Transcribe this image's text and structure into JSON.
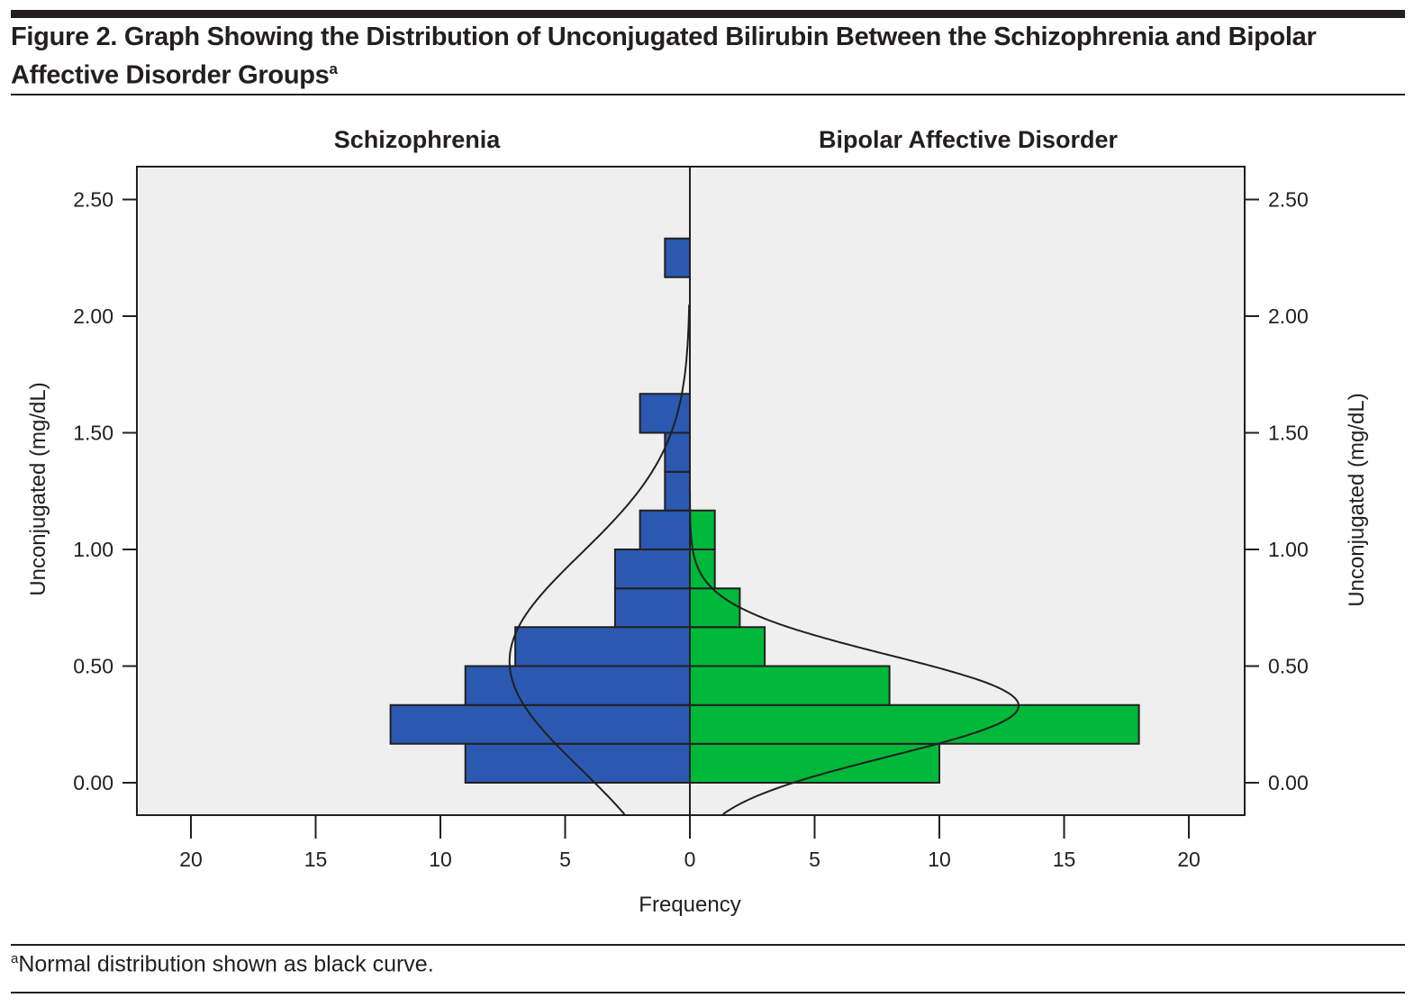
{
  "figure": {
    "title": "Figure 2. Graph Showing the Distribution of Unconjugated Bilirubin Between the Schizophrenia and Bipolar Affective Disorder Groups",
    "title_superscript": "a",
    "footnote_marker": "a",
    "footnote": "Normal distribution shown as black curve."
  },
  "chart_data": {
    "type": "bar",
    "orientation": "horizontal-back-to-back",
    "title": "Graph Showing the Distribution of Unconjugated Bilirubin Between the Schizophrenia and Bipolar Affective Disorder Groups",
    "xlabel": "Frequency",
    "ylabel": "Unconjugated (mg/dL)",
    "ylabel_right": "Unconjugated (mg/dL)",
    "xlim": [
      0,
      22
    ],
    "ylim": [
      -0.14,
      2.62
    ],
    "x_ticks": [
      20,
      15,
      10,
      5,
      0
    ],
    "x_tick_labels_left": [
      "20",
      "15",
      "10",
      "5",
      "0"
    ],
    "x_tick_labels_right": [
      "5",
      "10",
      "15",
      "20"
    ],
    "y_ticks": [
      0.0,
      0.5,
      1.0,
      1.5,
      2.0,
      2.5
    ],
    "y_tick_labels": [
      "0.00",
      "0.50",
      "1.00",
      "1.50",
      "2.00",
      "2.50"
    ],
    "bin_width": 0.1667,
    "grid": false,
    "panels": [
      {
        "name": "Schizophrenia",
        "side": "left",
        "color": "#2b58b0",
        "bins": [
          {
            "y0": 0.0,
            "y1": 0.167,
            "count": 9
          },
          {
            "y0": 0.167,
            "y1": 0.333,
            "count": 12
          },
          {
            "y0": 0.333,
            "y1": 0.5,
            "count": 9
          },
          {
            "y0": 0.5,
            "y1": 0.667,
            "count": 7
          },
          {
            "y0": 0.667,
            "y1": 0.833,
            "count": 3
          },
          {
            "y0": 0.833,
            "y1": 1.0,
            "count": 3
          },
          {
            "y0": 1.0,
            "y1": 1.167,
            "count": 2
          },
          {
            "y0": 1.167,
            "y1": 1.333,
            "count": 1
          },
          {
            "y0": 1.333,
            "y1": 1.5,
            "count": 1
          },
          {
            "y0": 1.5,
            "y1": 1.667,
            "count": 2
          },
          {
            "y0": 2.167,
            "y1": 2.333,
            "count": 1
          }
        ],
        "normal_curve": {
          "mean": 0.52,
          "sd": 0.46,
          "n": 50
        }
      },
      {
        "name": "Bipolar Affective Disorder",
        "side": "right",
        "color": "#00b83a",
        "bins": [
          {
            "y0": 0.0,
            "y1": 0.167,
            "count": 10
          },
          {
            "y0": 0.167,
            "y1": 0.333,
            "count": 18
          },
          {
            "y0": 0.333,
            "y1": 0.5,
            "count": 8
          },
          {
            "y0": 0.5,
            "y1": 0.667,
            "count": 3
          },
          {
            "y0": 0.667,
            "y1": 0.833,
            "count": 2
          },
          {
            "y0": 0.833,
            "y1": 1.0,
            "count": 1
          },
          {
            "y0": 1.0,
            "y1": 1.167,
            "count": 1
          }
        ],
        "normal_curve": {
          "mean": 0.33,
          "sd": 0.217,
          "n": 43
        }
      }
    ],
    "annotations": [
      "Normal distribution shown as black curve"
    ]
  }
}
